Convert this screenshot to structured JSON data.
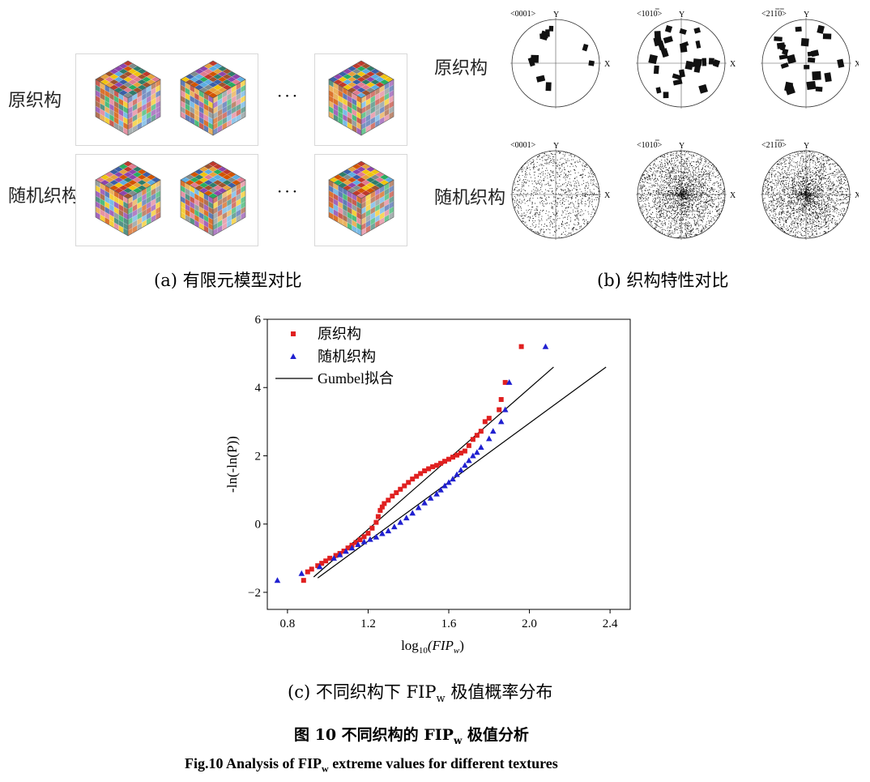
{
  "panel_a": {
    "row1_label": "原织构",
    "row2_label": "随机织构",
    "ellipsis": "···",
    "caption": "(a)  有限元模型对比",
    "palette": [
      "#c0392b",
      "#e6a23c",
      "#3b5fa8",
      "#8e44ad",
      "#2e7d6b",
      "#f1c40f",
      "#7f8c8d",
      "#d35400",
      "#5dade2",
      "#a0522d",
      "#27ae60",
      "#e07b91"
    ]
  },
  "panel_b": {
    "row1_label": "原织构",
    "row2_label": "随机织构",
    "pole_titles": [
      "<0001>",
      "<1010>",
      "<2110>"
    ],
    "pole_title_bars": [
      [],
      [
        3
      ],
      [
        2,
        3
      ]
    ],
    "x_label": "X",
    "y_label": "Y",
    "caption": "(b)  织构特性对比"
  },
  "panel_c": {
    "caption_prefix": "(c)  不同织构下 FIP",
    "caption_sub": "w",
    "caption_suffix": " 极值概率分布"
  },
  "figure_title": {
    "zh_prefix": "图 10  不同织构的 FIP",
    "zh_sub": "w",
    "zh_suffix": " 极值分析",
    "en_prefix": "Fig.10 Analysis of FIP",
    "en_sub": "w",
    "en_suffix": " extreme values for different textures"
  },
  "chart_data": {
    "type": "scatter",
    "xlabel_prefix": "log",
    "xlabel_sub": "10",
    "xlabel_var": "(FIP",
    "xlabel_var_sub": "w",
    "xlabel_close": ")",
    "ylabel": "-ln(-ln(P))",
    "xlim": [
      0.7,
      2.5
    ],
    "ylim": [
      -2.5,
      6
    ],
    "xticks": [
      0.8,
      1.2,
      1.6,
      2.0,
      2.4
    ],
    "xtick_labels": [
      "0.8",
      "1.2",
      "1.6",
      "2.0",
      "2.4"
    ],
    "yticks": [
      -2,
      0,
      2,
      4,
      6
    ],
    "ytick_labels": [
      "−2",
      "0",
      "2",
      "4",
      "6"
    ],
    "legend_position": "top-left",
    "series": [
      {
        "name": "原织构",
        "marker": "square",
        "color": "#e02020",
        "x": [
          0.88,
          0.9,
          0.92,
          0.95,
          0.97,
          0.99,
          1.01,
          1.04,
          1.06,
          1.08,
          1.1,
          1.12,
          1.14,
          1.16,
          1.18,
          1.2,
          1.22,
          1.24,
          1.25,
          1.26,
          1.27,
          1.28,
          1.3,
          1.32,
          1.34,
          1.36,
          1.38,
          1.4,
          1.42,
          1.44,
          1.46,
          1.48,
          1.5,
          1.52,
          1.54,
          1.56,
          1.58,
          1.6,
          1.62,
          1.64,
          1.66,
          1.68,
          1.7,
          1.72,
          1.74,
          1.76,
          1.78,
          1.8,
          1.85,
          1.86,
          1.88,
          1.96
        ],
        "y": [
          -1.65,
          -1.4,
          -1.32,
          -1.22,
          -1.15,
          -1.08,
          -1.0,
          -0.92,
          -0.86,
          -0.79,
          -0.7,
          -0.62,
          -0.54,
          -0.46,
          -0.37,
          -0.27,
          -0.12,
          0.05,
          0.22,
          0.4,
          0.5,
          0.6,
          0.7,
          0.82,
          0.92,
          1.02,
          1.12,
          1.22,
          1.32,
          1.4,
          1.48,
          1.56,
          1.62,
          1.68,
          1.72,
          1.78,
          1.84,
          1.9,
          1.96,
          2.02,
          2.08,
          2.14,
          2.3,
          2.48,
          2.6,
          2.72,
          3.0,
          3.1,
          3.35,
          3.65,
          4.15,
          5.2
        ]
      },
      {
        "name": "随机织构",
        "marker": "triangle",
        "color": "#2020d0",
        "x": [
          0.75,
          0.87,
          0.96,
          1.03,
          1.06,
          1.09,
          1.12,
          1.15,
          1.18,
          1.21,
          1.24,
          1.27,
          1.3,
          1.33,
          1.36,
          1.39,
          1.42,
          1.45,
          1.48,
          1.51,
          1.54,
          1.56,
          1.58,
          1.6,
          1.62,
          1.64,
          1.66,
          1.68,
          1.7,
          1.72,
          1.74,
          1.76,
          1.8,
          1.82,
          1.86,
          1.88,
          1.9,
          2.08
        ],
        "y": [
          -1.65,
          -1.45,
          -1.25,
          -1.0,
          -0.9,
          -0.8,
          -0.7,
          -0.6,
          -0.52,
          -0.45,
          -0.38,
          -0.28,
          -0.2,
          -0.08,
          0.05,
          0.18,
          0.32,
          0.48,
          0.62,
          0.76,
          0.88,
          1.0,
          1.12,
          1.22,
          1.32,
          1.45,
          1.58,
          1.72,
          1.86,
          2.0,
          2.1,
          2.25,
          2.5,
          2.72,
          3.0,
          3.35,
          4.15,
          5.2
        ]
      },
      {
        "name": "Gumbel拟合",
        "marker": "line",
        "color": "#000000",
        "lines": [
          {
            "x": [
              0.93,
              2.12
            ],
            "y": [
              -1.55,
              4.6
            ]
          },
          {
            "x": [
              0.95,
              2.38
            ],
            "y": [
              -1.58,
              4.6
            ]
          }
        ]
      }
    ]
  }
}
